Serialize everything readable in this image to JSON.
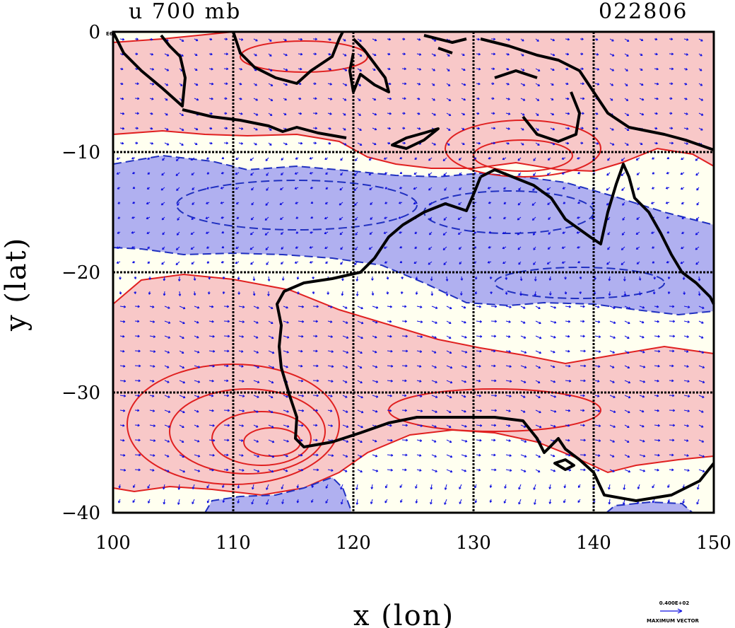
{
  "map": {
    "title_left": "u 700 mb",
    "title_right": "022806",
    "corner_label": "E6",
    "x_axis_label": "x (lon)",
    "y_axis_label": "y (lat)",
    "x_ticks": [
      "100",
      "110",
      "120",
      "130",
      "140",
      "150"
    ],
    "y_ticks": [
      "0",
      "−10",
      "−20",
      "−30",
      "−40"
    ],
    "x_range": [
      100,
      150
    ],
    "y_range": [
      -40,
      0
    ],
    "vector_legend": {
      "value": "0.400E+02",
      "caption": "MAXIMUM VECTOR"
    },
    "colors": {
      "positive_fill": "#f8c8c8",
      "positive_contour": "#e02020",
      "negative_fill": "#b0b0f0",
      "negative_contour": "#2030c0",
      "background_fill": "#fffff0",
      "coastline": "#000000",
      "vector": "#1010e0"
    }
  }
}
